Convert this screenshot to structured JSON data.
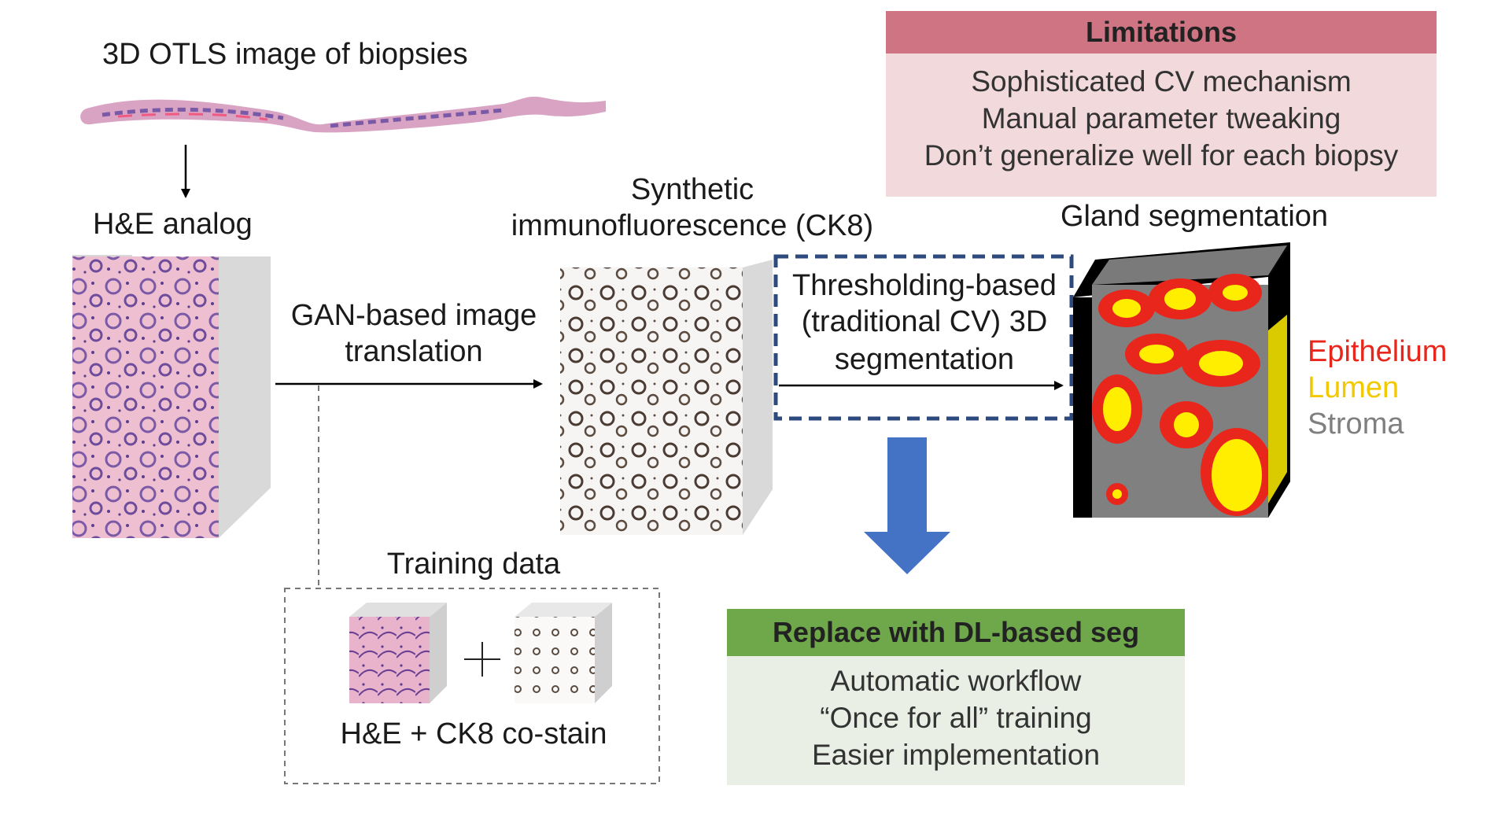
{
  "labels": {
    "otls_title": "3D OTLS image of biopsies",
    "he_analog": "H&E analog",
    "synthetic_line1": "Synthetic",
    "synthetic_line2": "immunofluorescence (CK8)",
    "gland_seg": "Gland segmentation",
    "gan_line1": "GAN-based image",
    "gan_line2": "translation",
    "thresh_line1": "Thresholding-based",
    "thresh_line2": "(traditional CV) 3D",
    "thresh_line3": "segmentation",
    "training_title": "Training data",
    "training_caption": "H&E + CK8 co-stain"
  },
  "limitations": {
    "title": "Limitations",
    "items": [
      "Sophisticated CV mechanism",
      "Manual parameter tweaking",
      "Don’t generalize well for each biopsy"
    ]
  },
  "replace": {
    "title": "Replace with DL-based seg",
    "items": [
      "Automatic workflow",
      "“Once for all” training",
      "Easier implementation"
    ]
  },
  "legend": [
    {
      "label": "Epithelium",
      "color": "#e8261c"
    },
    {
      "label": "Lumen",
      "color": "#f2c800"
    },
    {
      "label": "Stroma",
      "color": "#7f7f7f"
    }
  ],
  "colors": {
    "limitations_header": "#cf7482",
    "limitations_body": "#f2d9dc",
    "replace_header": "#6ea84a",
    "replace_body": "#e9efe4",
    "dashed_box": "#2c4a7d",
    "big_arrow": "#4472c4"
  }
}
